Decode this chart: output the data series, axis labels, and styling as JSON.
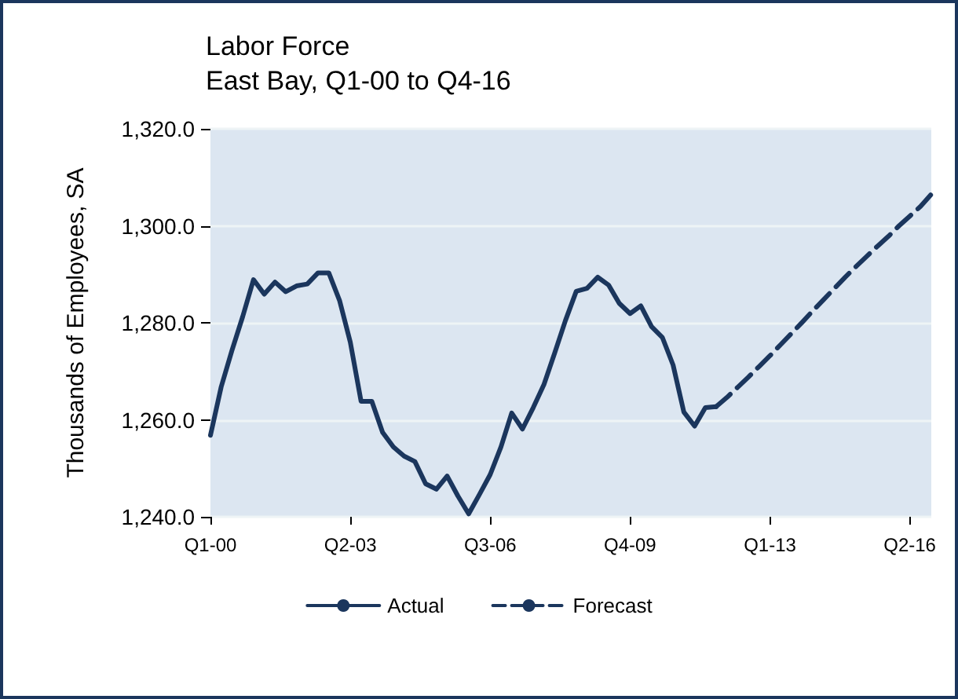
{
  "chart_data": {
    "type": "line",
    "title": "Labor Force",
    "subtitle": "East Bay, Q1-00 to Q4-16",
    "ylabel": "Thousands of Employees, SA",
    "categories": [
      "Q1-00",
      null,
      null,
      null,
      null,
      null,
      null,
      null,
      null,
      null,
      null,
      null,
      null,
      "Q2-03",
      null,
      null,
      null,
      null,
      null,
      null,
      null,
      null,
      null,
      null,
      null,
      null,
      "Q3-06",
      null,
      null,
      null,
      null,
      null,
      null,
      null,
      null,
      null,
      null,
      null,
      null,
      "Q4-09",
      null,
      null,
      null,
      null,
      null,
      null,
      null,
      null,
      null,
      null,
      null,
      null,
      "Q1-13",
      null,
      null,
      null,
      null,
      null,
      null,
      null,
      null,
      null,
      null,
      null,
      null,
      "Q2-16",
      null,
      null
    ],
    "series": [
      {
        "name": "Actual",
        "color": "#1b365d",
        "line_style": "solid",
        "values": [
          1256.8,
          1266.8,
          1274.3,
          1281.3,
          1288.9,
          1285.9,
          1288.4,
          1286.4,
          1287.6,
          1288.0,
          1290.3,
          1290.3,
          1284.6,
          1276.0,
          1263.8,
          1263.8,
          1257.4,
          1254.4,
          1252.5,
          1251.4,
          1246.8,
          1245.7,
          1248.4,
          1244.3,
          1240.6,
          1244.6,
          1248.7,
          1254.4,
          1261.4,
          1258.1,
          1262.5,
          1267.3,
          1273.8,
          1280.5,
          1286.5,
          1287.1,
          1289.4,
          1287.8,
          1284.0,
          1281.9,
          1283.5,
          1279.2,
          1277.0,
          1271.3,
          1261.6,
          1258.7,
          1262.5,
          1262.7,
          null,
          null,
          null,
          null,
          null,
          null,
          null,
          null,
          null,
          null,
          null,
          null,
          null,
          null,
          null,
          null,
          null,
          null,
          null,
          null
        ]
      },
      {
        "name": "Forecast",
        "color": "#1b365d",
        "line_style": "dashed",
        "values": [
          null,
          null,
          null,
          null,
          null,
          null,
          null,
          null,
          null,
          null,
          null,
          null,
          null,
          null,
          null,
          null,
          null,
          null,
          null,
          null,
          null,
          null,
          null,
          null,
          null,
          null,
          null,
          null,
          null,
          null,
          null,
          null,
          null,
          null,
          null,
          null,
          null,
          null,
          null,
          null,
          null,
          null,
          null,
          null,
          null,
          null,
          null,
          1262.7,
          1264.6,
          1266.7,
          1268.8,
          1271.0,
          1273.2,
          1275.5,
          1277.8,
          1280.1,
          1282.5,
          1284.8,
          1287.1,
          1289.4,
          1291.6,
          1293.7,
          1295.8,
          1297.8,
          1300.0,
          1302.0,
          1304.0,
          1306.5
        ]
      }
    ],
    "ylim": [
      1240,
      1320
    ],
    "yticks": [
      {
        "value": 1240,
        "label": "1,240.0"
      },
      {
        "value": 1260,
        "label": "1,260.0"
      },
      {
        "value": 1280,
        "label": "1,280.0"
      },
      {
        "value": 1300,
        "label": "1,300.0"
      },
      {
        "value": 1320,
        "label": "1,320.0"
      }
    ],
    "grid": "y",
    "legend": "bottom",
    "marker": "none"
  }
}
